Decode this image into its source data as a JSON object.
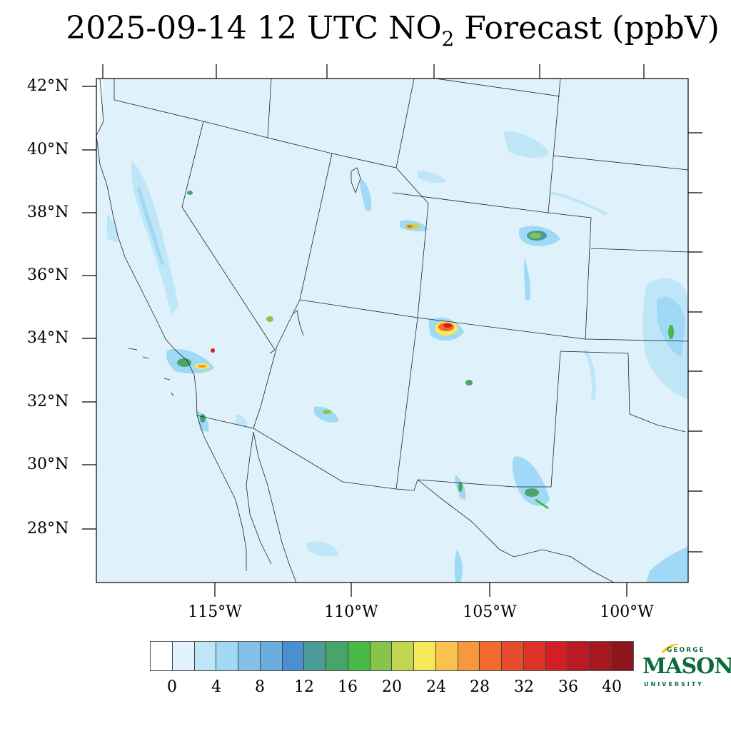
{
  "title": {
    "main": "2025-09-14 12 UTC NO",
    "sub": "2",
    "tail": " Forecast (ppbV)"
  },
  "lat_labels": [
    "42°N",
    "40°N",
    "38°N",
    "36°N",
    "34°N",
    "32°N",
    "30°N",
    "28°N"
  ],
  "lon_labels": [
    "115°W",
    "110°W",
    "105°W",
    "100°W"
  ],
  "colorbar": {
    "tick_labels": [
      "0",
      "4",
      "8",
      "12",
      "16",
      "20",
      "24",
      "28",
      "32",
      "36",
      "40"
    ],
    "colors": [
      "#ffffff",
      "#e1f3fc",
      "#bfe6f7",
      "#a0d9f5",
      "#85c0e6",
      "#6aaee0",
      "#4a8fcf",
      "#4b9b98",
      "#47a56a",
      "#48b847",
      "#86c54a",
      "#c2d550",
      "#f6e85a",
      "#f8c24d",
      "#f7983c",
      "#f26a2e",
      "#e84b2b",
      "#dd3328",
      "#d11f25",
      "#ba1a22",
      "#a5181f",
      "#8e1519"
    ]
  },
  "logo": {
    "top": "GEORGE",
    "main": "MASON",
    "bottom": "UNIVERSITY"
  },
  "map_colors": {
    "background": "#dff2fb",
    "light": "#bfe6f7",
    "medium": "#a0d9f5"
  }
}
